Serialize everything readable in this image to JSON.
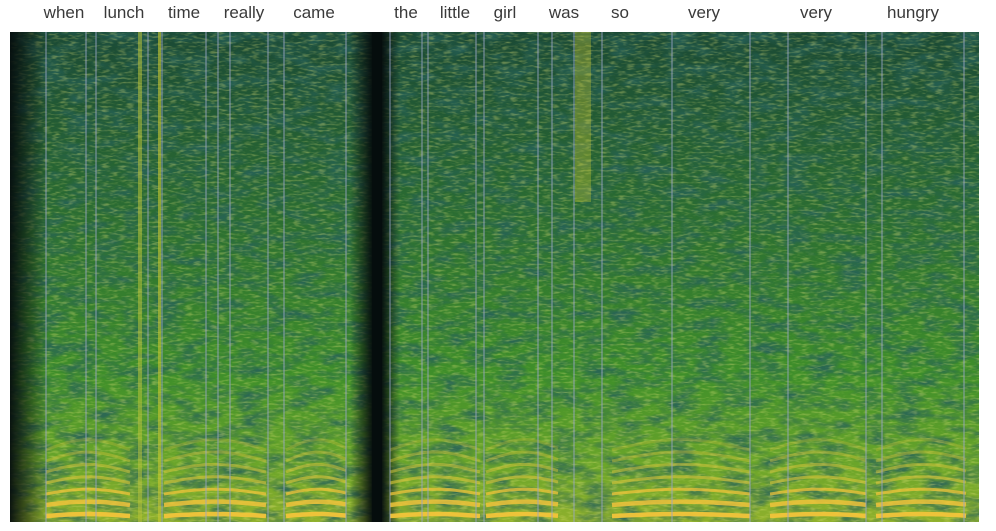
{
  "words": [
    {
      "text": "when"
    },
    {
      "text": "lunch"
    },
    {
      "text": "time"
    },
    {
      "text": "really"
    },
    {
      "text": "came"
    },
    {
      "text": "the"
    },
    {
      "text": "little"
    },
    {
      "text": "girl"
    },
    {
      "text": "was"
    },
    {
      "text": "so"
    },
    {
      "text": "very"
    },
    {
      "text": "very"
    },
    {
      "text": "hungry"
    }
  ],
  "colors": {
    "background": "#ffffff",
    "spectrogram_dark": "#0a1a1a",
    "spectrogram_low": "#1f5a30",
    "spectrogram_mid": "#3f8f2a",
    "spectrogram_high": "#c8c832",
    "harmonic": "#f0c43a",
    "boundary_line": "#9aa6c8",
    "word_text": "#3a3a3a"
  }
}
